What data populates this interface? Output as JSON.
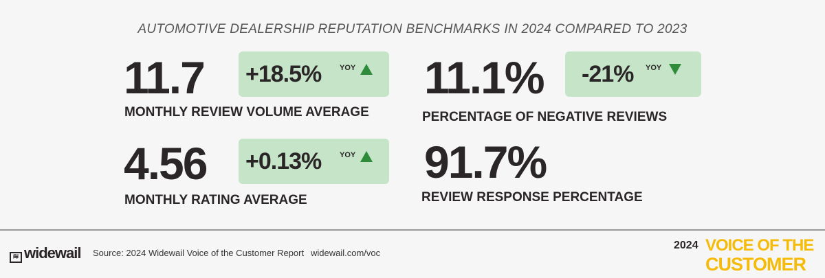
{
  "title": "AUTOMOTIVE DEALERSHIP REPUTATION BENCHMARKS IN 2024 COMPARED TO 2023",
  "metrics": [
    {
      "value": "11.7",
      "label": "MONTHLY REVIEW VOLUME AVERAGE",
      "change": "+18.5%",
      "yoy": "YOY",
      "direction": "up"
    },
    {
      "value": "11.1%",
      "label": "PERCENTAGE OF NEGATIVE REVIEWS",
      "change": "-21%",
      "yoy": "YOY",
      "direction": "down"
    },
    {
      "value": "4.56",
      "label": "MONTHLY RATING AVERAGE",
      "change": "+0.13%",
      "yoy": "YOY",
      "direction": "up"
    },
    {
      "value": "91.7%",
      "label": "REVIEW RESPONSE PERCENTAGE"
    }
  ],
  "colors": {
    "box": "#c6e4c8",
    "arrow": "#2e8b3a",
    "brand": "#f5bb0b"
  },
  "footer": {
    "logo": "widewail",
    "source": "Source: 2024 Widewail Voice of the Customer Report",
    "url": "widewail.com/voc",
    "year": "2024",
    "voc_line1": "VOICE OF THE",
    "voc_line2": "CUSTOMER"
  }
}
